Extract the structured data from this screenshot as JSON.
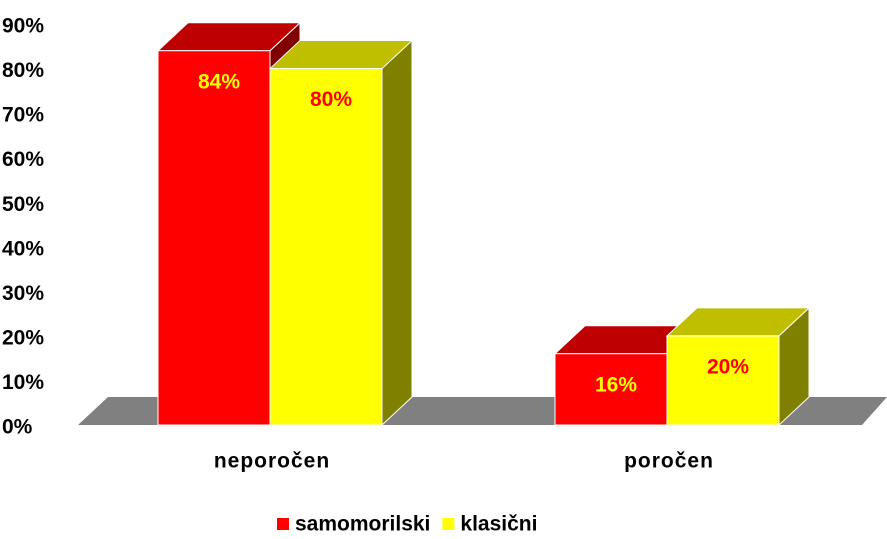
{
  "chart_data": {
    "type": "bar3d",
    "categories": [
      "neporočen",
      "poročen"
    ],
    "series": [
      {
        "name": "samomorilski",
        "color": "#ff0000",
        "values": [
          84,
          16
        ],
        "value_labels": [
          "84%",
          "16%"
        ],
        "label_color": "#ffff00"
      },
      {
        "name": "klasični",
        "color": "#ffff00",
        "values": [
          80,
          20
        ],
        "value_labels": [
          "80%",
          "20%"
        ],
        "label_color": "#ff0000"
      }
    ],
    "ylim": [
      0,
      90
    ],
    "yticks": [
      {
        "value": 0,
        "label": "0%"
      },
      {
        "value": 10,
        "label": "10%"
      },
      {
        "value": 20,
        "label": "20%"
      },
      {
        "value": 30,
        "label": "30%"
      },
      {
        "value": 40,
        "label": "40%"
      },
      {
        "value": 50,
        "label": "50%"
      },
      {
        "value": 60,
        "label": "60%"
      },
      {
        "value": 70,
        "label": "70%"
      },
      {
        "value": 80,
        "label": "80%"
      },
      {
        "value": 90,
        "label": "90%"
      }
    ],
    "legend": "bottom"
  }
}
